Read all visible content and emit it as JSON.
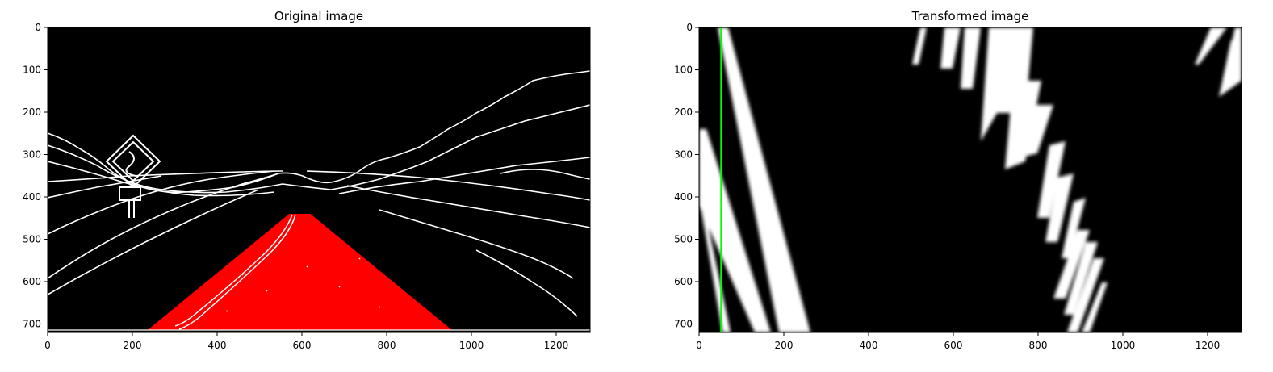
{
  "chart_data": [
    {
      "type": "image",
      "title": "Original image",
      "xlim": [
        0,
        1280
      ],
      "ylim": [
        720,
        0
      ],
      "xticks": [
        0,
        200,
        400,
        600,
        800,
        1000,
        1200
      ],
      "yticks": [
        0,
        100,
        200,
        300,
        400,
        500,
        600,
        700
      ],
      "background": "#000000",
      "overlay": {
        "shape": "polygon",
        "color": "#ff0000",
        "points": [
          [
            235,
            715
          ],
          [
            570,
            440
          ],
          [
            620,
            440
          ],
          [
            955,
            715
          ]
        ]
      },
      "edge_color": "#ffffff"
    },
    {
      "type": "image",
      "title": "Transformed image",
      "xlim": [
        0,
        1280
      ],
      "ylim": [
        720,
        0
      ],
      "xticks": [
        0,
        200,
        400,
        600,
        800,
        1000,
        1200
      ],
      "yticks": [
        0,
        100,
        200,
        300,
        400,
        500,
        600,
        700
      ],
      "background": "#000000",
      "vertical_line": {
        "x": 52,
        "color": "#00ff00"
      }
    }
  ]
}
